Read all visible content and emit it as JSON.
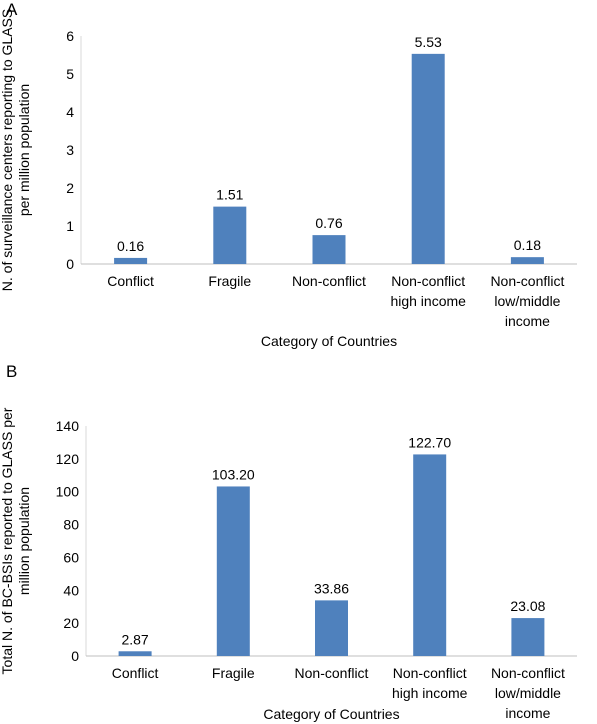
{
  "chart_data": [
    {
      "type": "bar",
      "panel": "A",
      "categories": [
        "Conflict",
        "Fragile",
        "Non-conflict",
        "Non-conflict\nhigh income",
        "Non-conflict\nlow/middle\nincome"
      ],
      "values": [
        0.16,
        1.51,
        0.76,
        5.53,
        0.18
      ],
      "value_labels": [
        "0.16",
        "1.51",
        "0.76",
        "5.53",
        "0.18"
      ],
      "yticks": [
        "0",
        "1",
        "2",
        "3",
        "4",
        "5",
        "6"
      ],
      "ylim": [
        0,
        6
      ],
      "xlabel": "Category of Countries",
      "ylabel": "N. of surveillance centers reporting to GLASS\nper million population",
      "bar_color": "#4f81bd",
      "grid": false
    },
    {
      "type": "bar",
      "panel": "B",
      "categories": [
        "Conflict",
        "Fragile",
        "Non-conflict",
        "Non-conflict\nhigh income",
        "Non-conflict\nlow/middle\nincome"
      ],
      "values": [
        2.87,
        103.2,
        33.86,
        122.7,
        23.08
      ],
      "value_labels": [
        "2.87",
        "103.20",
        "33.86",
        "122.70",
        "23.08"
      ],
      "yticks": [
        "0",
        "20",
        "40",
        "60",
        "80",
        "100",
        "120",
        "140"
      ],
      "ylim": [
        0,
        140
      ],
      "xlabel": "Category of Countries",
      "ylabel": "Total N. of BC-BSIs reported to GLASS per\nmillion population",
      "bar_color": "#4f81bd",
      "grid": false
    }
  ]
}
